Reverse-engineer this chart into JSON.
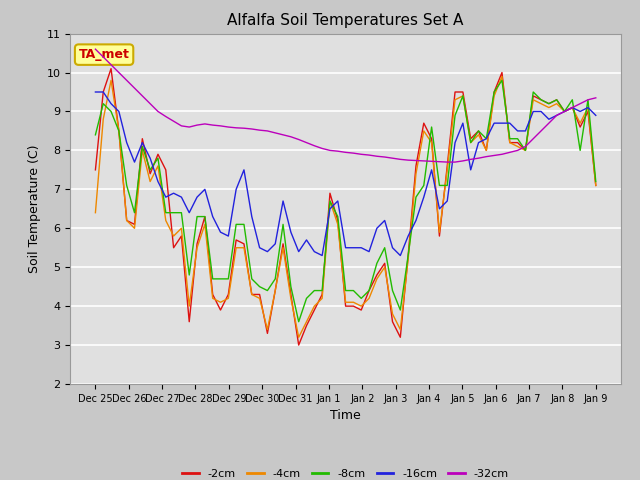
{
  "title": "Alfalfa Soil Temperatures Set A",
  "xlabel": "Time",
  "ylabel": "Soil Temperature (C)",
  "ylim": [
    2.0,
    11.0
  ],
  "yticks": [
    2.0,
    3.0,
    4.0,
    5.0,
    6.0,
    7.0,
    8.0,
    9.0,
    10.0,
    11.0
  ],
  "fig_bg": "#c8c8c8",
  "plot_bg": "#e0e0e0",
  "colors": {
    "-2cm": "#dd1111",
    "-4cm": "#ee8800",
    "-8cm": "#22bb00",
    "-16cm": "#2222dd",
    "-32cm": "#bb00bb"
  },
  "ta_met_label": "TA_met",
  "ta_met_color": "#cc0000",
  "ta_met_bg": "#ffff99",
  "ta_met_edge": "#ccaa00",
  "x_tick_labels": [
    "Dec 25",
    "Dec 26",
    "Dec 27",
    "Dec 28",
    "Dec 29",
    "Dec 30",
    "Dec 31",
    "Jan 1",
    "Jan 2",
    "Jan 3",
    "Jan 4",
    "Jan 5",
    "Jan 6",
    "Jan 7",
    "Jan 8",
    "Jan 9"
  ],
  "data_2cm": [
    7.5,
    9.5,
    10.1,
    8.5,
    6.2,
    6.1,
    8.3,
    7.4,
    7.9,
    7.5,
    5.5,
    5.8,
    3.6,
    5.6,
    6.3,
    4.3,
    3.9,
    4.3,
    5.7,
    5.6,
    4.3,
    4.3,
    3.3,
    4.4,
    5.6,
    4.3,
    3.0,
    3.5,
    3.9,
    4.3,
    6.9,
    6.2,
    4.0,
    4.0,
    3.9,
    4.4,
    4.8,
    5.1,
    3.6,
    3.2,
    5.3,
    7.6,
    8.7,
    8.3,
    5.8,
    7.6,
    9.5,
    9.5,
    8.3,
    8.5,
    8.0,
    9.5,
    10.0,
    8.2,
    8.2,
    8.0,
    9.4,
    9.3,
    9.2,
    9.3,
    9.0,
    9.1,
    8.6,
    9.0,
    7.1
  ],
  "data_4cm": [
    6.4,
    8.8,
    9.8,
    8.5,
    6.2,
    6.0,
    8.0,
    7.2,
    7.6,
    6.2,
    5.8,
    6.0,
    4.0,
    5.5,
    6.1,
    4.2,
    4.1,
    4.2,
    5.5,
    5.5,
    4.3,
    4.2,
    3.4,
    4.4,
    5.5,
    4.2,
    3.2,
    3.6,
    4.0,
    4.2,
    6.7,
    6.1,
    4.1,
    4.1,
    4.0,
    4.2,
    4.7,
    5.0,
    3.8,
    3.4,
    5.2,
    7.4,
    8.5,
    8.2,
    5.9,
    7.5,
    9.3,
    9.4,
    8.2,
    8.4,
    8.0,
    9.4,
    9.9,
    8.2,
    8.1,
    8.0,
    9.3,
    9.2,
    9.1,
    9.2,
    9.0,
    9.1,
    8.7,
    9.1,
    7.1
  ],
  "data_8cm": [
    8.4,
    9.2,
    9.0,
    8.5,
    7.1,
    6.4,
    8.1,
    7.5,
    7.8,
    6.4,
    6.4,
    6.4,
    4.8,
    6.3,
    6.3,
    4.7,
    4.7,
    4.7,
    6.1,
    6.1,
    4.7,
    4.5,
    4.4,
    4.7,
    6.1,
    4.5,
    3.6,
    4.2,
    4.4,
    4.4,
    6.7,
    6.3,
    4.4,
    4.4,
    4.2,
    4.4,
    5.1,
    5.5,
    4.4,
    3.9,
    5.3,
    6.8,
    7.1,
    8.6,
    7.1,
    7.1,
    8.9,
    9.4,
    8.2,
    8.5,
    8.3,
    9.5,
    9.8,
    8.3,
    8.3,
    8.0,
    9.5,
    9.3,
    9.2,
    9.3,
    9.0,
    9.3,
    8.0,
    9.3,
    7.2
  ],
  "data_16cm": [
    9.5,
    9.5,
    9.2,
    9.0,
    8.2,
    7.7,
    8.2,
    7.8,
    7.2,
    6.8,
    6.9,
    6.8,
    6.4,
    6.8,
    7.0,
    6.3,
    5.9,
    5.8,
    7.0,
    7.5,
    6.3,
    5.5,
    5.4,
    5.6,
    6.7,
    5.9,
    5.4,
    5.7,
    5.4,
    5.3,
    6.5,
    6.7,
    5.5,
    5.5,
    5.5,
    5.4,
    6.0,
    6.2,
    5.5,
    5.3,
    5.8,
    6.2,
    6.8,
    7.5,
    6.5,
    6.7,
    8.2,
    8.7,
    7.5,
    8.2,
    8.3,
    8.7,
    8.7,
    8.7,
    8.5,
    8.5,
    9.0,
    9.0,
    8.8,
    8.9,
    9.0,
    9.1,
    9.0,
    9.1,
    8.9
  ],
  "data_32cm": [
    10.6,
    10.4,
    10.2,
    10.0,
    9.8,
    9.6,
    9.4,
    9.2,
    9.0,
    8.87,
    8.75,
    8.63,
    8.6,
    8.65,
    8.68,
    8.65,
    8.63,
    8.6,
    8.58,
    8.57,
    8.55,
    8.52,
    8.5,
    8.45,
    8.4,
    8.35,
    8.28,
    8.2,
    8.12,
    8.05,
    8.0,
    7.98,
    7.95,
    7.93,
    7.9,
    7.88,
    7.85,
    7.83,
    7.8,
    7.77,
    7.75,
    7.74,
    7.73,
    7.72,
    7.71,
    7.7,
    7.7,
    7.73,
    7.77,
    7.8,
    7.84,
    7.87,
    7.9,
    7.95,
    8.0,
    8.1,
    8.3,
    8.5,
    8.7,
    8.9,
    9.0,
    9.1,
    9.2,
    9.3,
    9.35
  ]
}
